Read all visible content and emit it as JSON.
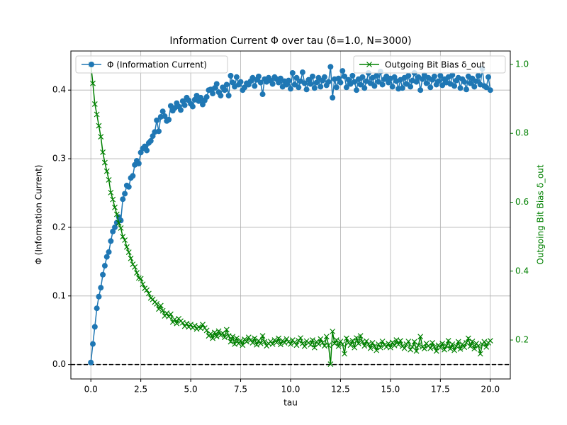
{
  "chart_data": {
    "type": "line",
    "title": "Information Current Φ over tau (δ=1.0, N=3000)",
    "xlabel": "tau",
    "ylabel": "Φ (Information Current)",
    "y2label": "Outgoing Bit Bias δ_out",
    "xlim": [
      -1,
      21
    ],
    "ylim": [
      -0.021,
      0.457
    ],
    "y2lim": [
      0.087,
      1.039
    ],
    "xticks": [
      {
        "value": 0,
        "label": "0.0"
      },
      2.5,
      {
        "value": 5,
        "label": "5.0"
      },
      7.5,
      {
        "value": 10,
        "label": "10.0"
      },
      12.5,
      {
        "value": 15,
        "label": "15.0"
      },
      17.5,
      {
        "value": 20,
        "label": "20.0"
      }
    ],
    "yticks": [
      {
        "value": 0,
        "label": "0.0"
      },
      0.1,
      0.2,
      0.3,
      0.4
    ],
    "y2ticks": [
      0.2,
      0.4,
      0.6,
      0.8,
      {
        "value": 1,
        "label": "1.0"
      }
    ],
    "grid": true,
    "hline": 0,
    "x": [
      0,
      0.1,
      0.2,
      0.3,
      0.4,
      0.5,
      0.6,
      0.7,
      0.8,
      0.9,
      1,
      1.1,
      1.2,
      1.3,
      1.4,
      1.5,
      1.6,
      1.7,
      1.8,
      1.9,
      2,
      2.1,
      2.2,
      2.3,
      2.4,
      2.5,
      2.6,
      2.7,
      2.8,
      2.9,
      3,
      3.1,
      3.2,
      3.3,
      3.4,
      3.5,
      3.6,
      3.7,
      3.8,
      3.9,
      4,
      4.1,
      4.2,
      4.3,
      4.4,
      4.5,
      4.6,
      4.7,
      4.8,
      4.9,
      5,
      5.1,
      5.2,
      5.3,
      5.4,
      5.5,
      5.6,
      5.7,
      5.8,
      5.9,
      6,
      6.1,
      6.2,
      6.3,
      6.4,
      6.5,
      6.6,
      6.7,
      6.8,
      6.9,
      7,
      7.1,
      7.2,
      7.3,
      7.4,
      7.5,
      7.6,
      7.7,
      7.8,
      7.9,
      8,
      8.1,
      8.2,
      8.3,
      8.4,
      8.5,
      8.6,
      8.7,
      8.8,
      8.9,
      9,
      9.1,
      9.2,
      9.3,
      9.4,
      9.5,
      9.6,
      9.7,
      9.8,
      9.9,
      10,
      10.1,
      10.2,
      10.3,
      10.4,
      10.5,
      10.6,
      10.7,
      10.8,
      10.9,
      11,
      11.1,
      11.2,
      11.3,
      11.4,
      11.5,
      11.6,
      11.7,
      11.8,
      11.9,
      12,
      12.1,
      12.2,
      12.3,
      12.4,
      12.5,
      12.6,
      12.7,
      12.8,
      12.9,
      13,
      13.1,
      13.2,
      13.3,
      13.4,
      13.5,
      13.6,
      13.7,
      13.8,
      13.9,
      14,
      14.1,
      14.2,
      14.3,
      14.4,
      14.5,
      14.6,
      14.7,
      14.8,
      14.9,
      15,
      15.1,
      15.2,
      15.3,
      15.4,
      15.5,
      15.6,
      15.7,
      15.8,
      15.9,
      16,
      16.1,
      16.2,
      16.3,
      16.4,
      16.5,
      16.6,
      16.7,
      16.8,
      16.9,
      17,
      17.1,
      17.2,
      17.3,
      17.4,
      17.5,
      17.6,
      17.7,
      17.8,
      17.9,
      18,
      18.1,
      18.2,
      18.3,
      18.4,
      18.5,
      18.6,
      18.7,
      18.8,
      18.9,
      19,
      19.1,
      19.2,
      19.3,
      19.4,
      19.5,
      19.6,
      19.7,
      19.8,
      19.9,
      20
    ],
    "series": [
      {
        "name": "Φ (Information Current)",
        "color": "#1f77b4",
        "marker": "o",
        "axis": "y",
        "legend": "upper left",
        "values": [
          0.003,
          0.03,
          0.055,
          0.082,
          0.099,
          0.112,
          0.131,
          0.144,
          0.157,
          0.164,
          0.18,
          0.194,
          0.2,
          0.207,
          0.215,
          0.21,
          0.241,
          0.249,
          0.261,
          0.259,
          0.272,
          0.275,
          0.291,
          0.297,
          0.293,
          0.309,
          0.315,
          0.318,
          0.312,
          0.323,
          0.326,
          0.333,
          0.339,
          0.356,
          0.34,
          0.361,
          0.369,
          0.362,
          0.355,
          0.357,
          0.377,
          0.37,
          0.374,
          0.381,
          0.376,
          0.371,
          0.384,
          0.378,
          0.389,
          0.385,
          0.38,
          0.376,
          0.386,
          0.392,
          0.384,
          0.389,
          0.379,
          0.385,
          0.39,
          0.4,
          0.401,
          0.395,
          0.403,
          0.409,
          0.397,
          0.392,
          0.404,
          0.4,
          0.408,
          0.392,
          0.421,
          0.411,
          0.405,
          0.419,
          0.408,
          0.412,
          0.4,
          0.404,
          0.41,
          0.408,
          0.413,
          0.418,
          0.406,
          0.415,
          0.42,
          0.411,
          0.394,
          0.416,
          0.412,
          0.418,
          0.414,
          0.409,
          0.419,
          0.416,
          0.411,
          0.417,
          0.405,
          0.413,
          0.408,
          0.414,
          0.402,
          0.425,
          0.408,
          0.418,
          0.404,
          0.413,
          0.426,
          0.41,
          0.401,
          0.415,
          0.409,
          0.42,
          0.403,
          0.411,
          0.418,
          0.405,
          0.414,
          0.419,
          0.407,
          0.412,
          0.434,
          0.389,
          0.416,
          0.404,
          0.417,
          0.411,
          0.428,
          0.42,
          0.404,
          0.415,
          0.409,
          0.421,
          0.412,
          0.4,
          0.416,
          0.408,
          0.419,
          0.403,
          0.413,
          0.425,
          0.41,
          0.418,
          0.406,
          0.421,
          0.412,
          0.427,
          0.408,
          0.416,
          0.42,
          0.411,
          0.417,
          0.405,
          0.419,
          0.413,
          0.402,
          0.415,
          0.403,
          0.418,
          0.409,
          0.421,
          0.405,
          0.414,
          0.425,
          0.412,
          0.419,
          0.4,
          0.416,
          0.422,
          0.41,
          0.418,
          0.404,
          0.415,
          0.42,
          0.408,
          0.413,
          0.421,
          0.407,
          0.416,
          0.411,
          0.419,
          0.409,
          0.422,
          0.406,
          0.414,
          0.418,
          0.403,
          0.416,
          0.412,
          0.401,
          0.42,
          0.41,
          0.417,
          0.405,
          0.413,
          0.421,
          0.408,
          0.431,
          0.406,
          0.404,
          0.419,
          0.4
        ]
      },
      {
        "name": "Outgoing Bit Bias δ_out",
        "color": "#008000",
        "marker": "x",
        "axis": "y2",
        "legend": "upper right",
        "values": [
          1.0,
          0.945,
          0.885,
          0.855,
          0.822,
          0.79,
          0.745,
          0.715,
          0.69,
          0.665,
          0.628,
          0.608,
          0.585,
          0.565,
          0.54,
          0.525,
          0.5,
          0.49,
          0.47,
          0.455,
          0.437,
          0.42,
          0.412,
          0.395,
          0.38,
          0.378,
          0.362,
          0.35,
          0.345,
          0.335,
          0.322,
          0.318,
          0.31,
          0.305,
          0.29,
          0.3,
          0.285,
          0.27,
          0.278,
          0.268,
          0.275,
          0.252,
          0.26,
          0.248,
          0.262,
          0.255,
          0.25,
          0.24,
          0.248,
          0.238,
          0.245,
          0.236,
          0.242,
          0.232,
          0.238,
          0.234,
          0.245,
          0.235,
          0.228,
          0.212,
          0.218,
          0.205,
          0.222,
          0.21,
          0.226,
          0.214,
          0.22,
          0.208,
          0.23,
          0.212,
          0.195,
          0.21,
          0.188,
          0.205,
          0.19,
          0.198,
          0.185,
          0.202,
          0.195,
          0.208,
          0.2,
          0.192,
          0.205,
          0.186,
          0.198,
          0.19,
          0.212,
          0.195,
          0.183,
          0.19,
          0.196,
          0.188,
          0.2,
          0.193,
          0.205,
          0.187,
          0.198,
          0.192,
          0.203,
          0.195,
          0.188,
          0.2,
          0.193,
          0.185,
          0.198,
          0.206,
          0.19,
          0.182,
          0.197,
          0.192,
          0.186,
          0.2,
          0.178,
          0.195,
          0.188,
          0.203,
          0.192,
          0.183,
          0.21,
          0.185,
          0.13,
          0.225,
          0.19,
          0.2,
          0.182,
          0.196,
          0.188,
          0.16,
          0.205,
          0.192,
          0.185,
          0.198,
          0.178,
          0.206,
          0.19,
          0.212,
          0.195,
          0.183,
          0.197,
          0.188,
          0.176,
          0.192,
          0.182,
          0.17,
          0.188,
          0.178,
          0.196,
          0.185,
          0.18,
          0.19,
          0.178,
          0.193,
          0.184,
          0.2,
          0.187,
          0.198,
          0.182,
          0.176,
          0.188,
          0.196,
          0.172,
          0.18,
          0.195,
          0.168,
          0.185,
          0.21,
          0.18,
          0.175,
          0.19,
          0.183,
          0.176,
          0.192,
          0.18,
          0.168,
          0.185,
          0.178,
          0.19,
          0.172,
          0.183,
          0.198,
          0.175,
          0.188,
          0.17,
          0.182,
          0.195,
          0.174,
          0.188,
          0.179,
          0.192,
          0.205,
          0.182,
          0.196,
          0.175,
          0.19,
          0.183,
          0.16,
          0.188,
          0.195,
          0.18,
          0.192,
          0.198
        ]
      }
    ]
  }
}
